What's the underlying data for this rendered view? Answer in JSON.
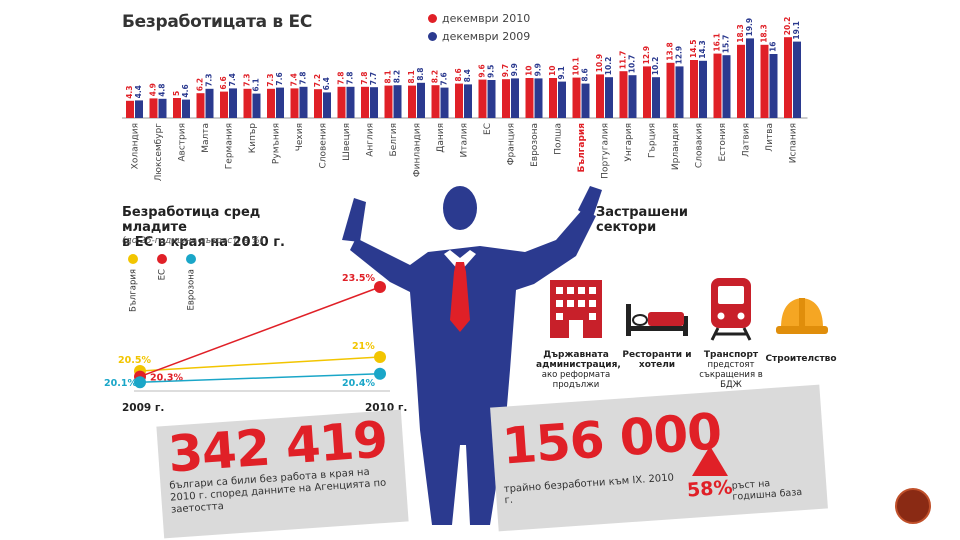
{
  "main_title": "Безработицата в ЕС",
  "legend": {
    "series_2010": "декември 2010",
    "series_2009": "декември 2009",
    "color_2010": "#e02027",
    "color_2009": "#2b3a8f"
  },
  "chart_data": [
    {
      "type": "bar",
      "title": "Безработицата в ЕС",
      "categories": [
        "Холандия",
        "Люксембург",
        "Австрия",
        "Малта",
        "Германия",
        "Кипър",
        "Румъния",
        "Чехия",
        "Словения",
        "Швеция",
        "Англия",
        "Белгия",
        "Финландия",
        "Дания",
        "Италия",
        "ЕС",
        "Франция",
        "Еврозона",
        "Полша",
        "България",
        "Португалия",
        "Унгария",
        "Гърция",
        "Ирландия",
        "Словакия",
        "Естония",
        "Латвия",
        "Литва",
        "Испания"
      ],
      "highlight_category": "България",
      "series": [
        {
          "name": "декември 2010",
          "values": [
            4.3,
            4.9,
            5.0,
            6.2,
            6.6,
            7.3,
            7.3,
            7.4,
            7.2,
            7.8,
            7.8,
            8.1,
            8.1,
            8.2,
            8.6,
            9.6,
            9.7,
            10,
            10,
            10.1,
            10.9,
            11.7,
            12.9,
            13.8,
            14.5,
            16.1,
            18.3,
            18.3,
            20.2
          ]
        },
        {
          "name": "декември 2009",
          "values": [
            4.4,
            4.8,
            4.6,
            7.3,
            7.4,
            6.1,
            7.6,
            7.8,
            6.4,
            7.8,
            7.7,
            8.2,
            8.8,
            7.6,
            8.4,
            9.5,
            9.9,
            9.9,
            9.1,
            8.6,
            10.2,
            10.7,
            10.2,
            12.9,
            14.3,
            15.7,
            19.9,
            16,
            19.1
          ]
        }
      ]
    },
    {
      "type": "line",
      "title": "Безработица сред младите в ЕС в края на 2010 г.",
      "subtitle": "(до 25-годишна възраст, в %)",
      "x": [
        "2009 г.",
        "2010 г."
      ],
      "series": [
        {
          "name": "България",
          "color": "#f2c500",
          "values": [
            20.5,
            21
          ],
          "labels": [
            "20.5%",
            "21%"
          ]
        },
        {
          "name": "ЕС",
          "color": "#e02027",
          "values": [
            20.3,
            23.5
          ],
          "labels": [
            "20.3%",
            "23.5%"
          ]
        },
        {
          "name": "Еврозона",
          "color": "#1aa6c8",
          "values": [
            20.1,
            20.4
          ],
          "labels": [
            "20.1%",
            "20.4%"
          ]
        }
      ]
    }
  ],
  "youth": {
    "title_line1": "Безработица сред младите",
    "title_line2": "в ЕС в края на 2010 г.",
    "note": "(до 25-годишна възраст, в %)",
    "legend": [
      "България",
      "ЕС",
      "Еврозона"
    ],
    "x_start": "2009 г.",
    "x_end": "2010 г."
  },
  "sectors": {
    "title_line1": "Застрашени",
    "title_line2": "сектори",
    "items": [
      {
        "icon": "government-building-icon",
        "bold": "Държавната администрация,",
        "text": "ако реформата продължи"
      },
      {
        "icon": "hotel-bed-icon",
        "bold": "Ресторанти и хотели",
        "text": ""
      },
      {
        "icon": "train-icon",
        "bold": "Транспорт",
        "text": "предстоят съкращения в БДЖ"
      },
      {
        "icon": "hard-hat-icon",
        "bold": "Строителство",
        "text": ""
      }
    ]
  },
  "stat1": {
    "number": "342 419",
    "text": "българи са били без работа в края на 2010 г. според данните на Агенцията по заетостта"
  },
  "stat2": {
    "number": "156 000",
    "text": "трайно безработни към IX. 2010 г.",
    "pct": "58%",
    "pct_label": "ръст на годишна база"
  }
}
